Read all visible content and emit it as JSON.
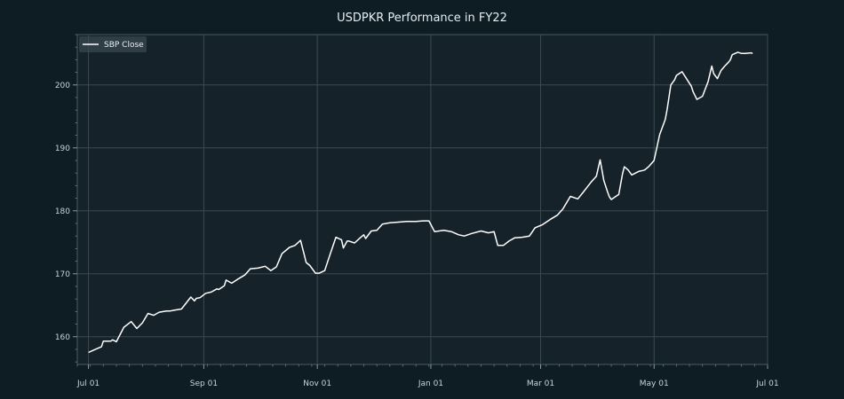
{
  "chart_data": {
    "type": "line",
    "title": "USDPKR Performance in FY22",
    "xlabel": "",
    "ylabel": "",
    "grid": true,
    "legend_position": "top-left",
    "x_range": [
      "2021-06-25",
      "2022-07-01"
    ],
    "y_range": [
      155.6,
      208.0
    ],
    "x_ticks": [
      {
        "date": "2021-07-01",
        "label": "Jul 01"
      },
      {
        "date": "2021-09-01",
        "label": "Sep 01"
      },
      {
        "date": "2021-11-01",
        "label": "Nov 01"
      },
      {
        "date": "2022-01-01",
        "label": "Jan 01"
      },
      {
        "date": "2022-03-01",
        "label": "Mar 01"
      },
      {
        "date": "2022-05-01",
        "label": "May 01"
      },
      {
        "date": "2022-07-01",
        "label": "Jul 01"
      }
    ],
    "y_ticks": [
      160,
      170,
      180,
      190,
      200
    ],
    "colors": {
      "background": "#0e1c24",
      "plot_background": "#162229",
      "grid": "#3a4a52",
      "line": "#ffffff",
      "text": "#e6eef2"
    },
    "series": [
      {
        "name": "SBP Close",
        "x": [
          "2021-07-01",
          "2021-07-04",
          "2021-07-08",
          "2021-07-09",
          "2021-07-13",
          "2021-07-14",
          "2021-07-16",
          "2021-07-20",
          "2021-07-24",
          "2021-07-27",
          "2021-07-30",
          "2021-08-02",
          "2021-08-05",
          "2021-08-08",
          "2021-08-12",
          "2021-08-14",
          "2021-08-16",
          "2021-08-20",
          "2021-08-25",
          "2021-08-27",
          "2021-08-28",
          "2021-08-30",
          "2021-09-02",
          "2021-09-05",
          "2021-09-08",
          "2021-09-09",
          "2021-09-12",
          "2021-09-13",
          "2021-09-16",
          "2021-09-19",
          "2021-09-23",
          "2021-09-26",
          "2021-09-30",
          "2021-10-04",
          "2021-10-07",
          "2021-10-10",
          "2021-10-13",
          "2021-10-17",
          "2021-10-20",
          "2021-10-23",
          "2021-10-25",
          "2021-10-26",
          "2021-10-28",
          "2021-10-31",
          "2021-11-02",
          "2021-11-05",
          "2021-11-08",
          "2021-11-11",
          "2021-11-14",
          "2021-11-15",
          "2021-11-17",
          "2021-11-18",
          "2021-11-21",
          "2021-11-24",
          "2021-11-26",
          "2021-11-27",
          "2021-11-30",
          "2021-12-03",
          "2021-12-06",
          "2021-12-10",
          "2021-12-14",
          "2021-12-19",
          "2021-12-24",
          "2021-12-28",
          "2021-12-31",
          "2022-01-03",
          "2022-01-08",
          "2022-01-12",
          "2022-01-16",
          "2022-01-19",
          "2022-01-23",
          "2022-01-28",
          "2022-02-01",
          "2022-02-04",
          "2022-02-06",
          "2022-02-09",
          "2022-02-12",
          "2022-02-15",
          "2022-02-19",
          "2022-02-23",
          "2022-02-26",
          "2022-03-02",
          "2022-03-06",
          "2022-03-10",
          "2022-03-13",
          "2022-03-17",
          "2022-03-21",
          "2022-03-24",
          "2022-03-28",
          "2022-03-31",
          "2022-04-02",
          "2022-04-04",
          "2022-04-06",
          "2022-04-07",
          "2022-04-08",
          "2022-04-12",
          "2022-04-14",
          "2022-04-15",
          "2022-04-17",
          "2022-04-19",
          "2022-04-23",
          "2022-04-25",
          "2022-04-26",
          "2022-04-28",
          "2022-05-01",
          "2022-05-04",
          "2022-05-07",
          "2022-05-08",
          "2022-05-10",
          "2022-05-12",
          "2022-05-13",
          "2022-05-16",
          "2022-05-21",
          "2022-05-22",
          "2022-05-24",
          "2022-05-27",
          "2022-05-30",
          "2022-06-01",
          "2022-06-02",
          "2022-06-04",
          "2022-06-06",
          "2022-06-08",
          "2022-06-10",
          "2022-06-11",
          "2022-06-12",
          "2022-06-15",
          "2022-06-17",
          "2022-06-19",
          "2022-06-22",
          "2022-06-23"
        ],
        "y": [
          157.5,
          157.9,
          158.4,
          159.3,
          159.3,
          159.5,
          159.2,
          161.5,
          162.4,
          161.3,
          162.2,
          163.7,
          163.4,
          163.9,
          164.1,
          164.1,
          164.2,
          164.4,
          166.3,
          165.7,
          166.1,
          166.2,
          166.9,
          167.1,
          167.6,
          167.5,
          168.1,
          169.0,
          168.5,
          169.1,
          169.8,
          170.8,
          170.9,
          171.2,
          170.5,
          171.1,
          173.2,
          174.2,
          174.5,
          175.3,
          173.0,
          171.8,
          171.3,
          170.1,
          170.1,
          170.5,
          173.2,
          175.8,
          175.4,
          174.1,
          175.2,
          175.2,
          174.9,
          175.7,
          176.2,
          175.6,
          176.8,
          176.9,
          177.9,
          178.1,
          178.2,
          178.3,
          178.3,
          178.4,
          178.4,
          176.7,
          176.9,
          176.7,
          176.2,
          176.0,
          176.4,
          176.8,
          176.5,
          176.7,
          174.5,
          174.5,
          175.2,
          175.7,
          175.8,
          176.0,
          177.3,
          177.8,
          178.6,
          179.3,
          180.3,
          182.3,
          181.9,
          183.0,
          184.5,
          185.5,
          188.1,
          184.8,
          183.0,
          182.2,
          181.8,
          182.6,
          185.8,
          187.0,
          186.5,
          185.7,
          186.3,
          186.4,
          186.5,
          187.0,
          188.0,
          192.1,
          194.5,
          196.1,
          200.0,
          200.8,
          201.5,
          202.1,
          199.8,
          198.9,
          197.7,
          198.2,
          200.5,
          203.0,
          201.8,
          201.0,
          202.3,
          203.0,
          203.6,
          204.0,
          204.8,
          205.2,
          205.0,
          205.0,
          205.1,
          205.0
        ]
      }
    ]
  }
}
